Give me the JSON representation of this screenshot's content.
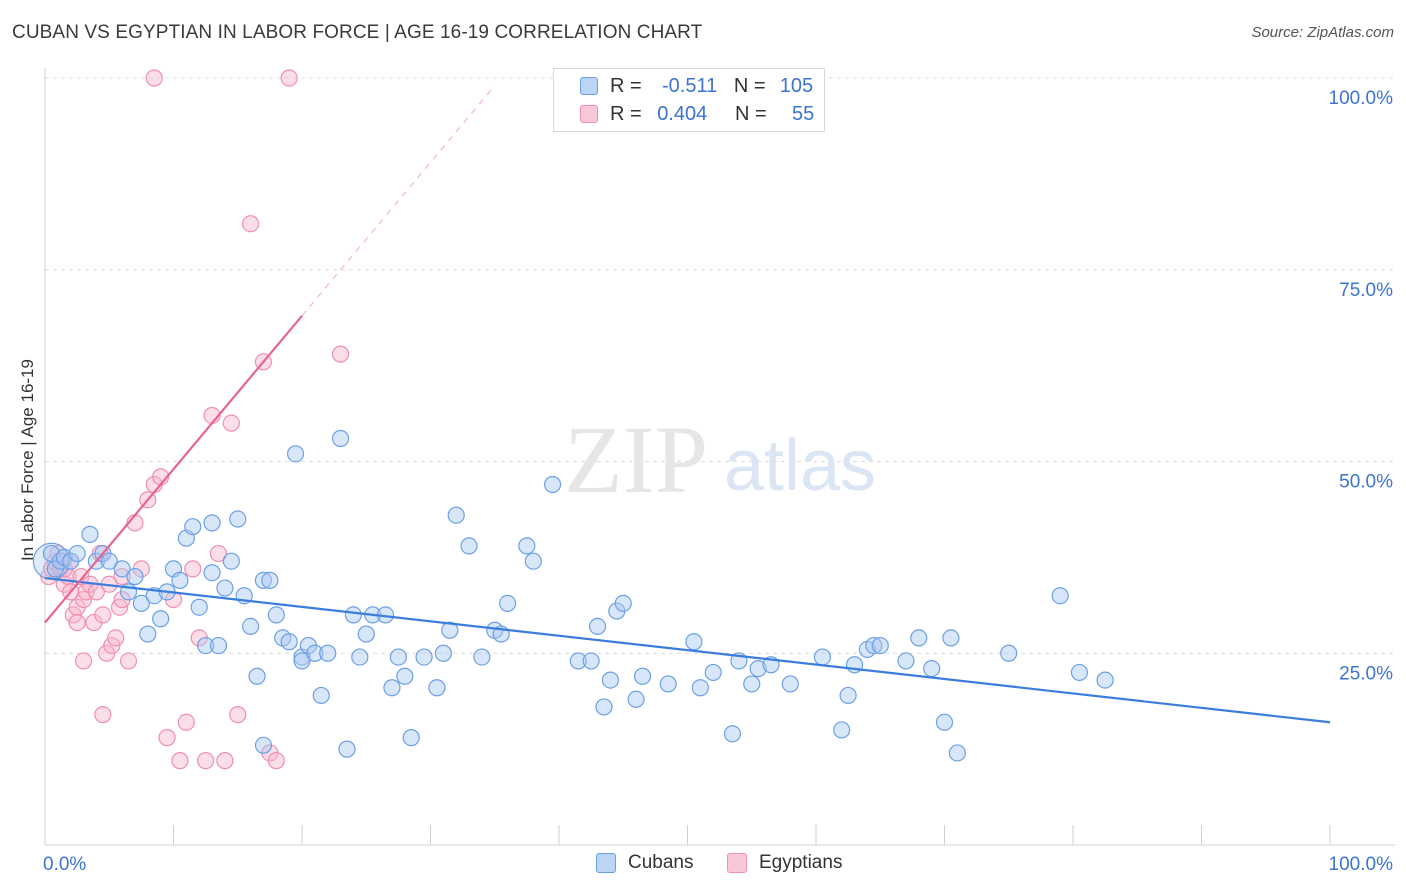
{
  "title": "CUBAN VS EGYPTIAN IN LABOR FORCE | AGE 16-19 CORRELATION CHART",
  "source": "Source: ZipAtlas.com",
  "watermark": {
    "zip": "ZIP",
    "atlas": "atlas"
  },
  "legend": {
    "rows": [
      {
        "r_label": "R =",
        "r_value": "-0.511",
        "n_label": "N =",
        "n_value": "105",
        "color": "#6ba0e6"
      },
      {
        "r_label": "R =",
        "r_value": "0.404",
        "n_label": "N =",
        "n_value": "55",
        "color": "#f08fb0"
      }
    ]
  },
  "bottom_legend": {
    "cubans": "Cubans",
    "egyptians": "Egyptians"
  },
  "colors": {
    "blue": "#3b7ddd",
    "blue_fill": "#a9c8f2",
    "pink": "#e8648f",
    "pink_fill": "#f6b5cb",
    "axis_text": "#3b74d1"
  },
  "chart_data": {
    "type": "scatter",
    "ylabel": "In Labor Force | Age 16-19",
    "xlim": [
      0,
      100
    ],
    "ylim": [
      0,
      100
    ],
    "x_tick_labels": [
      "0.0%",
      "100.0%"
    ],
    "y_tick_labels": [
      "25.0%",
      "50.0%",
      "75.0%",
      "100.0%"
    ],
    "y_ticks": [
      25,
      50,
      75,
      100
    ],
    "grid": "horizontal dashed",
    "legend_position": "top-center",
    "series": [
      {
        "name": "Cubans",
        "color": "#6ba0e6",
        "trend": {
          "x": [
            0,
            100
          ],
          "y": [
            34.8,
            16.0
          ]
        },
        "points": [
          [
            0.5,
            38
          ],
          [
            0.8,
            36
          ],
          [
            1.2,
            37
          ],
          [
            1.5,
            37.5
          ],
          [
            2,
            37
          ],
          [
            2.5,
            38
          ],
          [
            3.5,
            40.5
          ],
          [
            4,
            37
          ],
          [
            4.5,
            38
          ],
          [
            5,
            37
          ],
          [
            6,
            36
          ],
          [
            6.5,
            33
          ],
          [
            7,
            35
          ],
          [
            7.5,
            31.5
          ],
          [
            8,
            27.5
          ],
          [
            8.5,
            32.5
          ],
          [
            9,
            29.5
          ],
          [
            9.5,
            33
          ],
          [
            10,
            36
          ],
          [
            10.5,
            34.5
          ],
          [
            11,
            40
          ],
          [
            11.5,
            41.5
          ],
          [
            12,
            31
          ],
          [
            12.5,
            26
          ],
          [
            13,
            35.5
          ],
          [
            13,
            42
          ],
          [
            13.5,
            26
          ],
          [
            14,
            33.5
          ],
          [
            14.5,
            37
          ],
          [
            15,
            42.5
          ],
          [
            15.5,
            32.5
          ],
          [
            16,
            28.5
          ],
          [
            16.5,
            22
          ],
          [
            17,
            34.5
          ],
          [
            17,
            13
          ],
          [
            17.5,
            34.5
          ],
          [
            18,
            30
          ],
          [
            18.5,
            27
          ],
          [
            19,
            26.5
          ],
          [
            19.5,
            51
          ],
          [
            20,
            24.5
          ],
          [
            20,
            24
          ],
          [
            20.5,
            26
          ],
          [
            21,
            25
          ],
          [
            21.5,
            19.5
          ],
          [
            22,
            25
          ],
          [
            23,
            53
          ],
          [
            23.5,
            12.5
          ],
          [
            24,
            30
          ],
          [
            24.5,
            24.5
          ],
          [
            25,
            27.5
          ],
          [
            25.5,
            30
          ],
          [
            26.5,
            30
          ],
          [
            27,
            20.5
          ],
          [
            27.5,
            24.5
          ],
          [
            28,
            22
          ],
          [
            28.5,
            14
          ],
          [
            29.5,
            24.5
          ],
          [
            30.5,
            20.5
          ],
          [
            31,
            25
          ],
          [
            31.5,
            28
          ],
          [
            32,
            43
          ],
          [
            33,
            39
          ],
          [
            34,
            24.5
          ],
          [
            35,
            28
          ],
          [
            35.5,
            27.5
          ],
          [
            36,
            31.5
          ],
          [
            37.5,
            39
          ],
          [
            38,
            37
          ],
          [
            39.5,
            47
          ],
          [
            41.5,
            24
          ],
          [
            42.5,
            24
          ],
          [
            43,
            28.5
          ],
          [
            43.5,
            18
          ],
          [
            44,
            21.5
          ],
          [
            44.5,
            30.5
          ],
          [
            45,
            31.5
          ],
          [
            46,
            19
          ],
          [
            46.5,
            22
          ],
          [
            48.5,
            21
          ],
          [
            50.5,
            26.5
          ],
          [
            51,
            20.5
          ],
          [
            52,
            22.5
          ],
          [
            53.5,
            14.5
          ],
          [
            54,
            24
          ],
          [
            55,
            21
          ],
          [
            55.5,
            23
          ],
          [
            56.5,
            23.5
          ],
          [
            58,
            21
          ],
          [
            60.5,
            24.5
          ],
          [
            62,
            15
          ],
          [
            62.5,
            19.5
          ],
          [
            63,
            23.5
          ],
          [
            64,
            25.5
          ],
          [
            64.5,
            26
          ],
          [
            65,
            26
          ],
          [
            67,
            24
          ],
          [
            68,
            27
          ],
          [
            69,
            23
          ],
          [
            70,
            16
          ],
          [
            70.5,
            27
          ],
          [
            71,
            12
          ],
          [
            75,
            25
          ],
          [
            79,
            32.5
          ],
          [
            80.5,
            22.5
          ],
          [
            82.5,
            21.5
          ]
        ]
      },
      {
        "name": "Egyptians",
        "color": "#f08fb0",
        "trend": {
          "x": [
            0,
            20
          ],
          "y": [
            29,
            69
          ]
        },
        "trend_dashed": {
          "x": [
            20,
            35
          ],
          "y": [
            69,
            99
          ]
        },
        "points": [
          [
            0.3,
            35
          ],
          [
            0.5,
            36
          ],
          [
            0.8,
            37
          ],
          [
            1,
            38
          ],
          [
            1.2,
            36
          ],
          [
            1.5,
            34
          ],
          [
            1.8,
            35
          ],
          [
            2,
            33
          ],
          [
            2.2,
            30
          ],
          [
            2.5,
            31
          ],
          [
            2.8,
            35
          ],
          [
            3,
            32
          ],
          [
            3.2,
            33
          ],
          [
            3.5,
            34
          ],
          [
            3.8,
            29
          ],
          [
            4,
            33
          ],
          [
            4.3,
            38
          ],
          [
            4.5,
            30
          ],
          [
            4.8,
            25
          ],
          [
            5,
            34
          ],
          [
            5.2,
            26
          ],
          [
            5.5,
            27
          ],
          [
            5.8,
            31
          ],
          [
            6,
            32
          ],
          [
            6.5,
            24
          ],
          [
            7,
            42
          ],
          [
            7.5,
            36
          ],
          [
            8,
            45
          ],
          [
            8.5,
            47
          ],
          [
            9,
            48
          ],
          [
            9.5,
            14
          ],
          [
            10,
            32
          ],
          [
            10.5,
            11
          ],
          [
            11,
            16
          ],
          [
            11.5,
            36
          ],
          [
            12,
            27
          ],
          [
            12.5,
            11
          ],
          [
            13,
            56
          ],
          [
            13.5,
            38
          ],
          [
            14,
            11
          ],
          [
            14.5,
            55
          ],
          [
            15,
            17
          ],
          [
            16,
            81
          ],
          [
            17,
            63
          ],
          [
            17.5,
            12
          ],
          [
            18,
            11
          ],
          [
            23,
            64
          ],
          [
            8.5,
            100
          ],
          [
            19,
            100
          ],
          [
            2.5,
            29
          ],
          [
            3,
            24
          ],
          [
            2,
            37
          ],
          [
            1.5,
            36
          ],
          [
            6,
            35
          ],
          [
            4.5,
            17
          ]
        ]
      }
    ]
  }
}
